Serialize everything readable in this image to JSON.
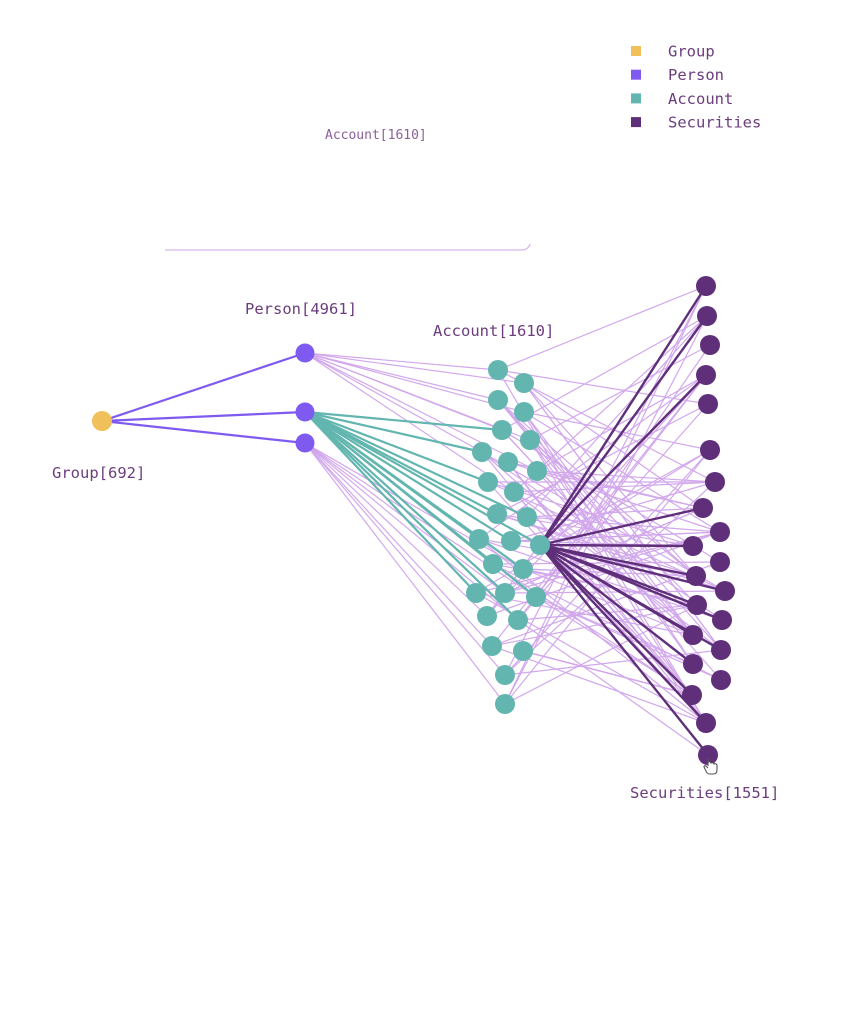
{
  "legend": [
    {
      "label": "Group",
      "color": "#f0c05a"
    },
    {
      "label": "Person",
      "color": "#7f5af0"
    },
    {
      "label": "Account",
      "color": "#63b6b0"
    },
    {
      "label": "Securities",
      "color": "#5f2f7a"
    }
  ],
  "ghost_label": "Account[1610]",
  "labels": {
    "group": "Group[692]",
    "person": "Person[4961]",
    "account": "Account[1610]",
    "securities": "Securities[1551]"
  },
  "colors": {
    "edge_light": "#d2a8ec",
    "edge_person": "#7f5af0",
    "edge_account": "#63b6b0",
    "edge_securities": "#5f2f7a"
  }
}
